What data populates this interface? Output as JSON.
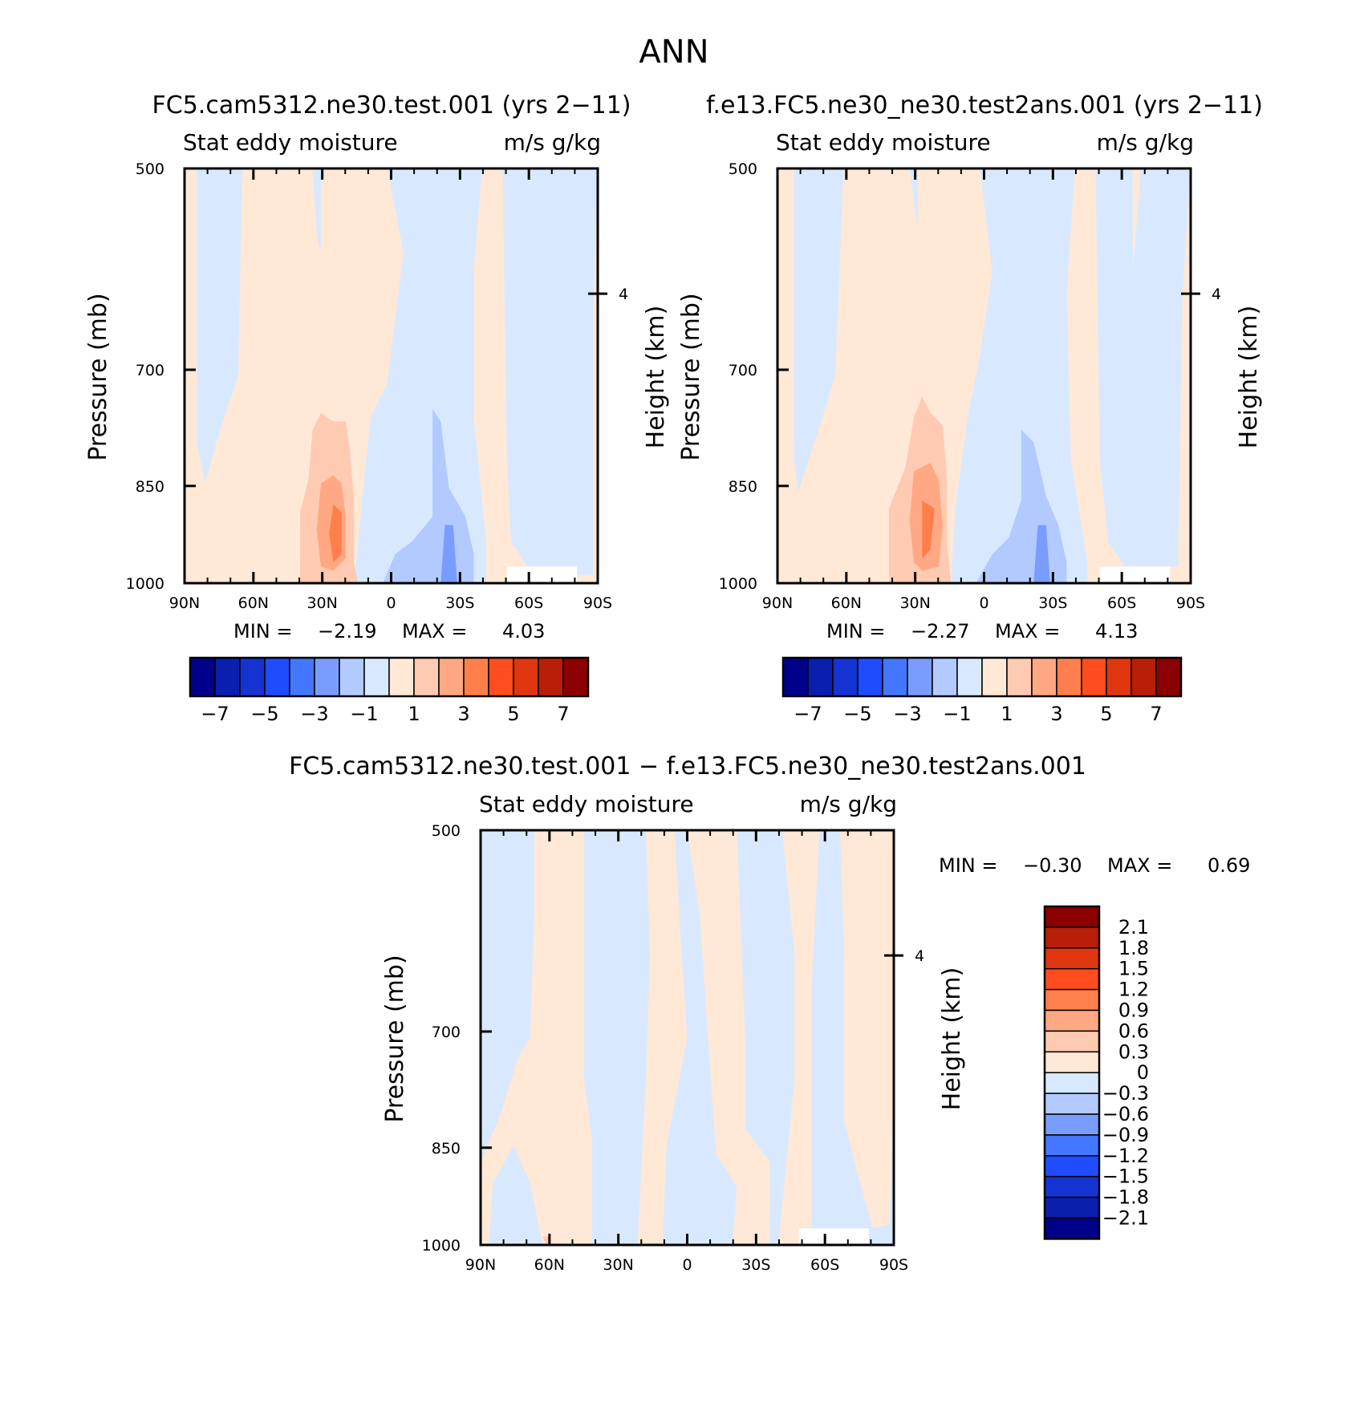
{
  "figure": {
    "title": "ANN"
  },
  "panels": [
    {
      "id": "test",
      "title": "FC5.cam5312.ne30.test.001 (yrs 2−11)",
      "left_subtitle": "Stat eddy moisture",
      "right_subtitle": "m/s g/kg",
      "minmax": {
        "min_label": "MIN =",
        "min_value": "−2.19",
        "max_label": "MAX =",
        "max_value": "4.03"
      }
    },
    {
      "id": "control",
      "title": "f.e13.FC5.ne30_ne30.test2ans.001 (yrs 2−11)",
      "left_subtitle": "Stat eddy moisture",
      "right_subtitle": "m/s g/kg",
      "minmax": {
        "min_label": "MIN =",
        "min_value": "−2.27",
        "max_label": "MAX =",
        "max_value": "4.13"
      }
    },
    {
      "id": "diff",
      "title": "FC5.cam5312.ne30.test.001 − f.e13.FC5.ne30_ne30.test2ans.001",
      "left_subtitle": "Stat eddy moisture",
      "right_subtitle": "m/s g/kg",
      "minmax": {
        "min_label": "MIN =",
        "min_value": "−0.30",
        "max_label": "MAX =",
        "max_value": "0.69"
      }
    }
  ],
  "axes": {
    "ylabel": "Pressure (mb)",
    "right_ylabel": "Height (km)",
    "right_tick": "4"
  },
  "colorbars": {
    "main": {
      "colors": [
        "#00008b",
        "#0a1fad",
        "#1433d1",
        "#1f4cff",
        "#4377ff",
        "#799dff",
        "#b2caff",
        "#d8e9ff",
        "#ffe8d6",
        "#ffcab2",
        "#ffa883",
        "#ff7f4c",
        "#ff4d1f",
        "#e03610",
        "#b91e06",
        "#8b0000"
      ],
      "labels": [
        "−7",
        "−5",
        "−3",
        "−1",
        "1",
        "3",
        "5",
        "7"
      ]
    },
    "diff": {
      "colors": [
        "#00008b",
        "#0a1fad",
        "#1433d1",
        "#1f4cff",
        "#4377ff",
        "#799dff",
        "#b2caff",
        "#d8e9ff",
        "#ffe8d6",
        "#ffcab2",
        "#ffa883",
        "#ff7f4c",
        "#ff4d1f",
        "#e03610",
        "#b91e06",
        "#8b0000"
      ],
      "labels": [
        "−2.1",
        "−1.8",
        "−1.5",
        "−1.2",
        "−0.9",
        "−0.6",
        "−0.3",
        "0",
        "0.3",
        "0.6",
        "0.9",
        "1.2",
        "1.5",
        "1.8",
        "2.1"
      ]
    }
  },
  "chart_data": [
    {
      "type": "heatmap",
      "title": "FC5.cam5312.ne30.test.001 (yrs 2−11)",
      "x_ticks": [
        "90N",
        "60N",
        "30N",
        "0",
        "30S",
        "60S",
        "90S"
      ],
      "x_values": [
        90,
        60,
        30,
        0,
        -30,
        -60,
        -90
      ],
      "y_ticks": [
        "500",
        "700",
        "850",
        "1000"
      ],
      "y_values": [
        500,
        700,
        850,
        1000
      ],
      "xlim": [
        90,
        -90
      ],
      "ylim": [
        500,
        1000
      ],
      "ylabel": "Pressure (mb)",
      "min": -2.19,
      "max": 4.03,
      "right_axis": {
        "label": "Height (km)",
        "ticks": [
          "4"
        ]
      }
    },
    {
      "type": "heatmap",
      "title": "f.e13.FC5.ne30_ne30.test2ans.001 (yrs 2−11)",
      "x_ticks": [
        "90N",
        "60N",
        "30N",
        "0",
        "30S",
        "60S",
        "90S"
      ],
      "x_values": [
        90,
        60,
        30,
        0,
        -30,
        -60,
        -90
      ],
      "y_ticks": [
        "500",
        "700",
        "850",
        "1000"
      ],
      "y_values": [
        500,
        700,
        850,
        1000
      ],
      "xlim": [
        90,
        -90
      ],
      "ylim": [
        500,
        1000
      ],
      "ylabel": "Pressure (mb)",
      "min": -2.27,
      "max": 4.13,
      "right_axis": {
        "label": "Height (km)",
        "ticks": [
          "4"
        ]
      }
    },
    {
      "type": "heatmap",
      "title": "FC5.cam5312.ne30.test.001 − f.e13.FC5.ne30_ne30.test2ans.001",
      "x_ticks": [
        "90N",
        "60N",
        "30N",
        "0",
        "30S",
        "60S",
        "90S"
      ],
      "x_values": [
        90,
        60,
        30,
        0,
        -30,
        -60,
        -90
      ],
      "y_ticks": [
        "500",
        "700",
        "850",
        "1000"
      ],
      "y_values": [
        500,
        700,
        850,
        1000
      ],
      "xlim": [
        90,
        -90
      ],
      "ylim": [
        500,
        1000
      ],
      "ylabel": "Pressure (mb)",
      "min": -0.3,
      "max": 0.69,
      "right_axis": {
        "label": "Height (km)",
        "ticks": [
          "4"
        ]
      }
    }
  ]
}
